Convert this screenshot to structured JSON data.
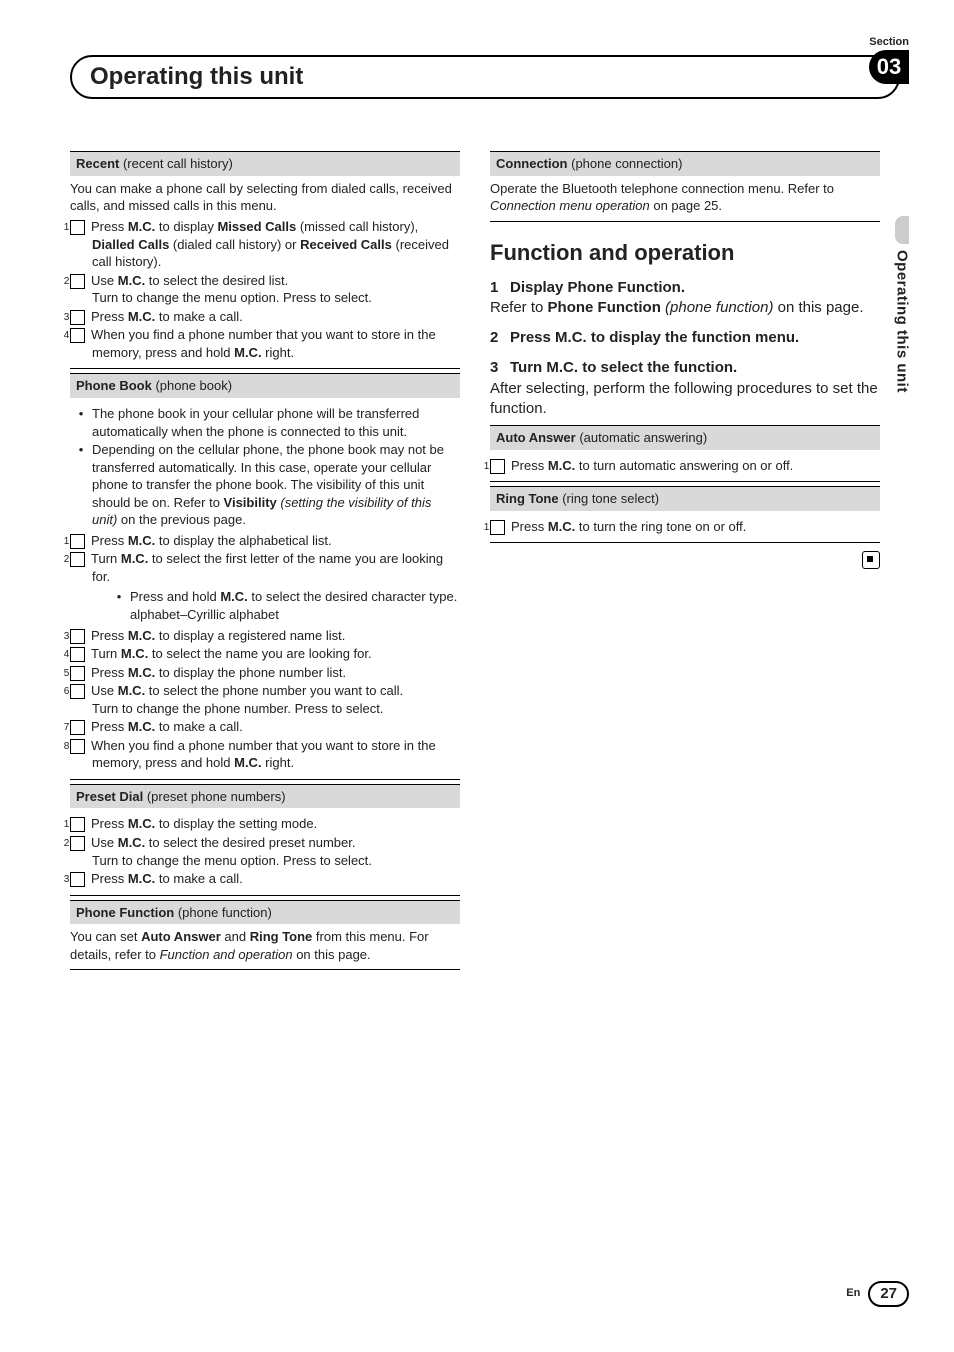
{
  "header": {
    "section_label": "Section",
    "section_number": "03",
    "chapter_title": "Operating this unit",
    "side_tab": "Operating this unit"
  },
  "left": {
    "recent": {
      "title": "Recent",
      "sub": " (recent call history)",
      "intro": "You can make a phone call by selecting from dialed calls, received calls, and missed calls in this menu.",
      "s1a": "Press ",
      "s1b": "M.C.",
      "s1c": " to display ",
      "s1d": "Missed Calls",
      "s1e": " (missed call history), ",
      "s1f": "Dialled Calls",
      "s1g": " (dialed call history) or ",
      "s1h": "Received Calls",
      "s1i": " (received call history).",
      "s2a": "Use ",
      "s2b": "M.C.",
      "s2c": " to select the desired list.",
      "s2d": "Turn to change the menu option. Press to select.",
      "s3a": "Press ",
      "s3b": "M.C.",
      "s3c": " to make a call.",
      "s4a": "When you find a phone number that you want to store in the memory, press and hold ",
      "s4b": "M.C.",
      "s4c": " right."
    },
    "phonebook": {
      "title": "Phone Book",
      "sub": " (phone book)",
      "b1": "The phone book in your cellular phone will be transferred automatically when the phone is connected to this unit.",
      "b2a": "Depending on the cellular phone, the phone book may not be transferred automatically. In this case, operate your cellular phone to transfer the phone book. The visibility of this unit should be on. Refer to ",
      "b2b": "Visibility",
      "b2c": " (setting the visibility of this unit)",
      "b2d": " on the previous page.",
      "s1a": "Press ",
      "s1b": "M.C.",
      "s1c": " to display the alphabetical list.",
      "s2a": "Turn ",
      "s2b": "M.C.",
      "s2c": " to select the first letter of the name you are looking for.",
      "s2n1a": "Press and hold ",
      "s2n1b": "M.C.",
      "s2n1c": " to select the desired character type.",
      "s2n2": "alphabet–Cyrillic alphabet",
      "s3a": "Press ",
      "s3b": "M.C.",
      "s3c": " to display a registered name list.",
      "s4a": "Turn ",
      "s4b": "M.C.",
      "s4c": " to select the name you are looking for.",
      "s5a": "Press ",
      "s5b": "M.C.",
      "s5c": " to display the phone number list.",
      "s6a": "Use ",
      "s6b": "M.C.",
      "s6c": " to select the phone number you want to call.",
      "s6d": "Turn to change the phone number. Press to select.",
      "s7a": "Press ",
      "s7b": "M.C.",
      "s7c": " to make a call.",
      "s8a": "When you find a phone number that you want to store in the memory, press and hold ",
      "s8b": "M.C.",
      "s8c": " right."
    },
    "preset": {
      "title": "Preset Dial",
      "sub": " (preset phone numbers)",
      "s1a": "Press ",
      "s1b": "M.C.",
      "s1c": " to display the setting mode.",
      "s2a": "Use ",
      "s2b": "M.C.",
      "s2c": " to select the desired preset number.",
      "s2d": "Turn to change the menu option. Press to select.",
      "s3a": "Press ",
      "s3b": "M.C.",
      "s3c": " to make a call."
    },
    "phonefn": {
      "title": "Phone Function",
      "sub": " (phone function)",
      "t1": "You can set ",
      "t2": "Auto Answer",
      "t3": " and ",
      "t4": "Ring Tone",
      "t5": " from this menu. For details, refer to ",
      "t6": "Function and operation",
      "t7": " on this page."
    }
  },
  "right": {
    "conn": {
      "title": "Connection",
      "sub": " (phone connection)",
      "t1": "Operate the Bluetooth telephone connection menu. Refer to ",
      "t2": "Connection menu operation",
      "t3": " on page 25."
    },
    "fn": {
      "heading": "Function and operation",
      "s1t": "Display Phone Function.",
      "s1a": "Refer to ",
      "s1b": "Phone Function",
      "s1c": " (phone function)",
      "s1d": " on this page.",
      "s2t": "Press M.C. to display the function menu.",
      "s3t": "Turn M.C. to select the function.",
      "s3body": "After selecting, perform the following procedures to set the function."
    },
    "auto": {
      "title": "Auto Answer",
      "sub": " (automatic answering)",
      "s1a": "Press ",
      "s1b": "M.C.",
      "s1c": " to turn automatic answering on or off."
    },
    "ring": {
      "title": "Ring Tone",
      "sub": " (ring tone select)",
      "s1a": "Press ",
      "s1b": "M.C.",
      "s1c": " to turn the ring tone on or off."
    }
  },
  "footer": {
    "lang": "En",
    "page": "27"
  }
}
